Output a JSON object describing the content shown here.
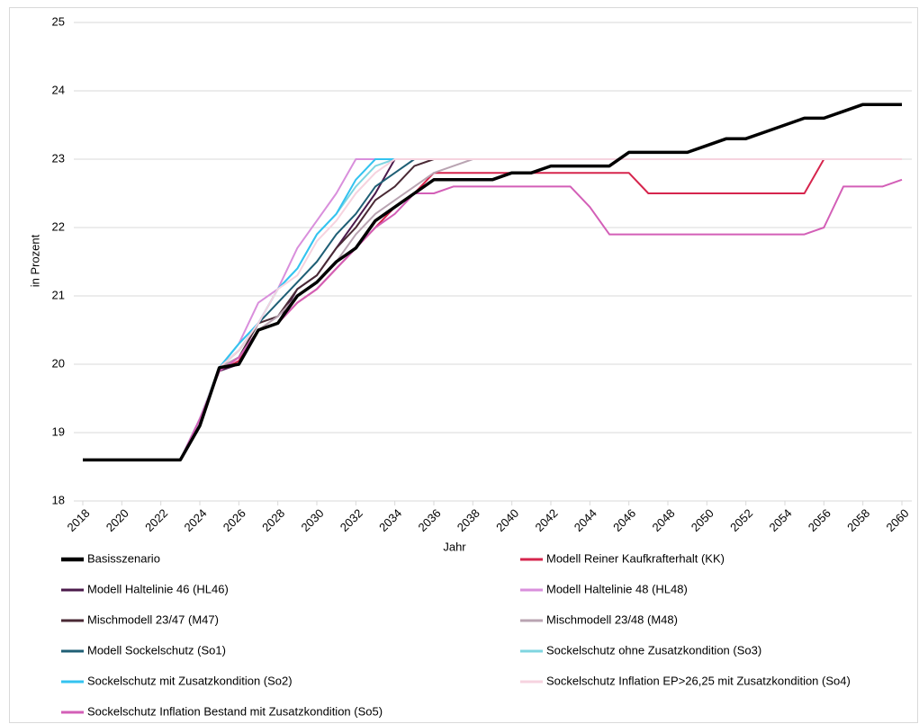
{
  "chart_data": {
    "type": "line",
    "x_label": "Jahr",
    "y_label": "in Prozent",
    "xlim": [
      2018,
      2060
    ],
    "xticks": [
      2018,
      2020,
      2022,
      2024,
      2026,
      2028,
      2030,
      2032,
      2034,
      2036,
      2038,
      2040,
      2042,
      2044,
      2046,
      2048,
      2050,
      2052,
      2054,
      2056,
      2058,
      2060
    ],
    "ylim": [
      18,
      25
    ],
    "yticks": [
      18,
      19,
      20,
      21,
      22,
      23,
      24,
      25
    ],
    "grid": true,
    "legend": "bottom",
    "x": [
      2018,
      2019,
      2020,
      2021,
      2022,
      2023,
      2024,
      2025,
      2026,
      2027,
      2028,
      2029,
      2030,
      2031,
      2032,
      2033,
      2034,
      2035,
      2036,
      2037,
      2038,
      2039,
      2040,
      2041,
      2042,
      2043,
      2044,
      2045,
      2046,
      2047,
      2048,
      2049,
      2050,
      2051,
      2052,
      2053,
      2054,
      2055,
      2056,
      2057,
      2058,
      2059,
      2060
    ],
    "series": [
      {
        "name": "Basisszenario",
        "color": "#000000",
        "width": 3.5,
        "values": [
          18.6,
          18.6,
          18.6,
          18.6,
          18.6,
          18.6,
          19.1,
          19.95,
          20.0,
          20.5,
          20.6,
          21.0,
          21.2,
          21.5,
          21.7,
          22.1,
          22.3,
          22.5,
          22.7,
          22.7,
          22.7,
          22.7,
          22.8,
          22.8,
          22.9,
          22.9,
          22.9,
          22.9,
          23.1,
          23.1,
          23.1,
          23.1,
          23.2,
          23.3,
          23.3,
          23.4,
          23.5,
          23.6,
          23.6,
          23.7,
          23.8,
          23.8,
          23.8
        ]
      },
      {
        "name": "Modell Reiner Kaufkrafterhalt (KK)",
        "color": "#d6254d",
        "width": 2,
        "values": [
          18.6,
          18.6,
          18.6,
          18.6,
          18.6,
          18.6,
          19.2,
          19.9,
          20.05,
          20.5,
          20.6,
          20.9,
          21.1,
          21.4,
          21.7,
          22.0,
          22.3,
          22.5,
          22.8,
          22.8,
          22.8,
          22.8,
          22.8,
          22.8,
          22.8,
          22.8,
          22.8,
          22.8,
          22.8,
          22.5,
          22.5,
          22.5,
          22.5,
          22.5,
          22.5,
          22.5,
          22.5,
          22.5,
          23.0,
          23.0,
          23.0,
          23.0,
          23.0
        ]
      },
      {
        "name": "Modell Haltelinie 46 (HL46)",
        "color": "#4b1a4b",
        "width": 2,
        "values": [
          18.6,
          18.6,
          18.6,
          18.6,
          18.6,
          18.6,
          19.2,
          19.9,
          20.0,
          20.5,
          20.6,
          21.1,
          21.3,
          21.7,
          22.1,
          22.5,
          23.0,
          23.0,
          23.0,
          23.0,
          23.0,
          23.0,
          23.0,
          23.0,
          23.0,
          23.0,
          23.0,
          23.0,
          23.0,
          23.0,
          23.0,
          23.0,
          23.0,
          23.0,
          23.0,
          23.0,
          23.0,
          23.0,
          23.0,
          23.0,
          23.0,
          23.0,
          23.0
        ]
      },
      {
        "name": "Modell Haltelinie 48 (HL48)",
        "color": "#d98fdc",
        "width": 2,
        "values": [
          18.6,
          18.6,
          18.6,
          18.6,
          18.6,
          18.6,
          19.2,
          19.95,
          20.3,
          20.9,
          21.1,
          21.7,
          22.1,
          22.5,
          23.0,
          23.0,
          23.0,
          23.0,
          23.0,
          23.0,
          23.0,
          23.0,
          23.0,
          23.0,
          23.0,
          23.0,
          23.0,
          23.0,
          23.0,
          23.0,
          23.0,
          23.0,
          23.0,
          23.0,
          23.0,
          23.0,
          23.0,
          23.0,
          23.0,
          23.0,
          23.0,
          23.0,
          23.0
        ]
      },
      {
        "name": "Mischmodell 23/47 (M47)",
        "color": "#4a2a35",
        "width": 2,
        "values": [
          18.6,
          18.6,
          18.6,
          18.6,
          18.6,
          18.6,
          19.1,
          19.95,
          20.1,
          20.6,
          20.7,
          21.1,
          21.3,
          21.7,
          22.0,
          22.4,
          22.6,
          22.9,
          23.0,
          23.0,
          23.0,
          23.0,
          23.0,
          23.0,
          23.0,
          23.0,
          23.0,
          23.0,
          23.0,
          23.0,
          23.0,
          23.0,
          23.0,
          23.0,
          23.0,
          23.0,
          23.0,
          23.0,
          23.0,
          23.0,
          23.0,
          23.0,
          23.0
        ]
      },
      {
        "name": "Mischmodell 23/48 (M48)",
        "color": "#b9a4b2",
        "width": 2,
        "values": [
          18.6,
          18.6,
          18.6,
          18.6,
          18.6,
          18.6,
          19.2,
          19.95,
          20.1,
          20.5,
          20.7,
          21.0,
          21.2,
          21.5,
          21.9,
          22.2,
          22.4,
          22.6,
          22.8,
          22.9,
          23.0,
          23.0,
          23.0,
          23.0,
          23.0,
          23.0,
          23.0,
          23.0,
          23.0,
          23.0,
          23.0,
          23.0,
          23.0,
          23.0,
          23.0,
          23.0,
          23.0,
          23.0,
          23.0,
          23.0,
          23.0,
          23.0,
          23.0
        ]
      },
      {
        "name": "Modell Sockelschutz (So1)",
        "color": "#1f5f75",
        "width": 2,
        "values": [
          18.6,
          18.6,
          18.6,
          18.6,
          18.6,
          18.6,
          19.2,
          19.95,
          20.2,
          20.6,
          20.9,
          21.2,
          21.5,
          21.9,
          22.2,
          22.6,
          22.8,
          23.0,
          23.0,
          23.0,
          23.0,
          23.0,
          23.0,
          23.0,
          23.0,
          23.0,
          23.0,
          23.0,
          23.0,
          23.0,
          23.0,
          23.0,
          23.0,
          23.0,
          23.0,
          23.0,
          23.0,
          23.0,
          23.0,
          23.0,
          23.0,
          23.0,
          23.0
        ]
      },
      {
        "name": "Sockelschutz ohne Zusatzkondition (So3)",
        "color": "#7fd5e0",
        "width": 2,
        "values": [
          18.6,
          18.6,
          18.6,
          18.6,
          18.6,
          18.6,
          19.2,
          19.95,
          20.3,
          20.6,
          21.1,
          21.4,
          21.9,
          22.2,
          22.6,
          22.9,
          23.0,
          23.0,
          23.0,
          23.0,
          23.0,
          23.0,
          23.0,
          23.0,
          23.0,
          23.0,
          23.0,
          23.0,
          23.0,
          23.0,
          23.0,
          23.0,
          23.0,
          23.0,
          23.0,
          23.0,
          23.0,
          23.0,
          23.0,
          23.0,
          23.0,
          23.0,
          23.0
        ]
      },
      {
        "name": "Sockelschutz mit Zusatzkondition (So2)",
        "color": "#33c3f0",
        "width": 2,
        "values": [
          18.6,
          18.6,
          18.6,
          18.6,
          18.6,
          18.6,
          19.2,
          19.95,
          20.3,
          20.6,
          21.1,
          21.4,
          21.9,
          22.2,
          22.7,
          23.0,
          23.0,
          23.0,
          23.0,
          23.0,
          23.0,
          23.0,
          23.0,
          23.0,
          23.0,
          23.0,
          23.0,
          23.0,
          23.0,
          23.0,
          23.0,
          23.0,
          23.0,
          23.0,
          23.0,
          23.0,
          23.0,
          23.0,
          23.0,
          23.0,
          23.0,
          23.0,
          23.0
        ]
      },
      {
        "name": "Sockelschutz Inflation EP>26,25 mit Zusatzkondition (So4)",
        "color": "#f6d3df",
        "width": 2,
        "values": [
          18.6,
          18.6,
          18.6,
          18.6,
          18.6,
          18.6,
          19.2,
          19.95,
          20.2,
          20.6,
          21.1,
          21.3,
          21.8,
          22.1,
          22.5,
          22.8,
          23.0,
          23.0,
          23.0,
          23.0,
          23.0,
          23.0,
          23.0,
          23.0,
          23.0,
          23.0,
          23.0,
          23.0,
          23.0,
          23.0,
          23.0,
          23.0,
          23.0,
          23.0,
          23.0,
          23.0,
          23.0,
          23.0,
          23.0,
          23.0,
          23.0,
          23.0,
          23.0
        ]
      },
      {
        "name": "Sockelschutz Inflation Bestand mit Zusatzkondition (So5)",
        "color": "#d35fb7",
        "width": 2,
        "values": [
          18.6,
          18.6,
          18.6,
          18.6,
          18.6,
          18.6,
          19.2,
          19.9,
          20.1,
          20.5,
          20.6,
          20.9,
          21.1,
          21.4,
          21.7,
          22.0,
          22.2,
          22.5,
          22.5,
          22.6,
          22.6,
          22.6,
          22.6,
          22.6,
          22.6,
          22.6,
          22.3,
          21.9,
          21.9,
          21.9,
          21.9,
          21.9,
          21.9,
          21.9,
          21.9,
          21.9,
          21.9,
          21.9,
          22.0,
          22.6,
          22.6,
          22.6,
          22.7
        ]
      }
    ]
  }
}
